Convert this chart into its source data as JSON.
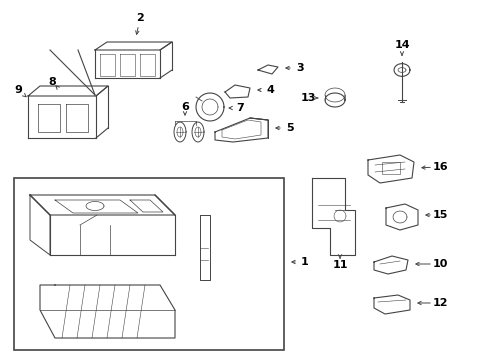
{
  "background_color": "#ffffff",
  "line_color": "#444444",
  "fig_width": 4.89,
  "fig_height": 3.6,
  "dpi": 100
}
